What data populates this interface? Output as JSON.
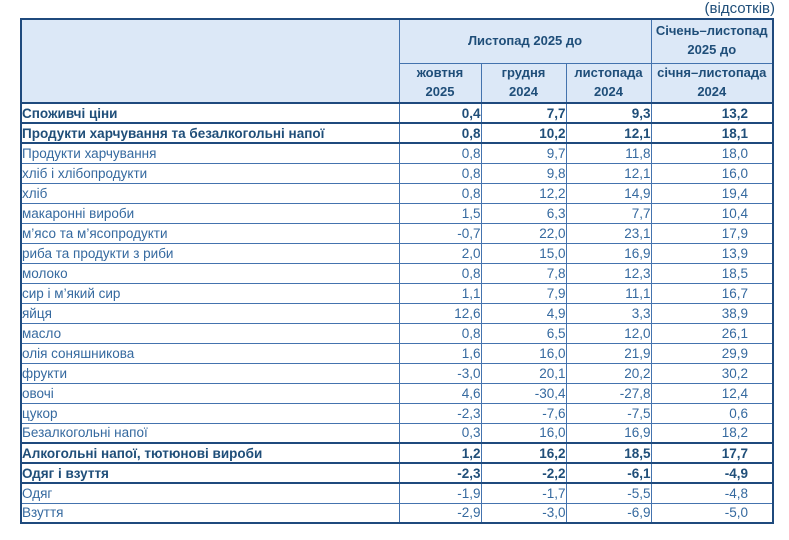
{
  "page": {
    "units_note": "(відсотків)"
  },
  "table": {
    "header": {
      "group_label": "Листопад 2025 до",
      "sub_cols": [
        "жовтня\n2025",
        "грудня\n2024",
        "листопада\n2024"
      ],
      "last_col_top": "Січень–листопад\n2025 до",
      "last_col_bottom": "січня–листопада\n2024"
    },
    "rows": [
      {
        "label": "Споживчі ціни",
        "indent": 0,
        "bold": true,
        "values": [
          "0,4",
          "7,7",
          "9,3",
          "13,2"
        ]
      },
      {
        "label": "Продукти харчування та безалкогольні напої",
        "indent": 1,
        "bold": true,
        "values": [
          "0,8",
          "10,2",
          "12,1",
          "18,1"
        ]
      },
      {
        "label": "Продукти харчування",
        "indent": 2,
        "bold": false,
        "values": [
          "0,8",
          "9,7",
          "11,8",
          "18,0"
        ]
      },
      {
        "label": "хліб і хлібопродукти",
        "indent": 3,
        "bold": false,
        "values": [
          "0,8",
          "9,8",
          "12,1",
          "16,0"
        ]
      },
      {
        "label": "хліб",
        "indent": 3,
        "bold": false,
        "values": [
          "0,8",
          "12,2",
          "14,9",
          "19,4"
        ]
      },
      {
        "label": "макаронні вироби",
        "indent": 3,
        "bold": false,
        "values": [
          "1,5",
          "6,3",
          "7,7",
          "10,4"
        ]
      },
      {
        "label": "м’ясо та м’ясопродукти",
        "indent": 3,
        "bold": false,
        "values": [
          "-0,7",
          "22,0",
          "23,1",
          "17,9"
        ]
      },
      {
        "label": "риба та продукти з риби",
        "indent": 3,
        "bold": false,
        "values": [
          "2,0",
          "15,0",
          "16,9",
          "13,9"
        ]
      },
      {
        "label": "молоко",
        "indent": 3,
        "bold": false,
        "values": [
          "0,8",
          "7,8",
          "12,3",
          "18,5"
        ]
      },
      {
        "label": "сир і м’який сир",
        "indent": 3,
        "bold": false,
        "values": [
          "1,1",
          "7,9",
          "11,1",
          "16,7"
        ]
      },
      {
        "label": "яйця",
        "indent": 3,
        "bold": false,
        "values": [
          "12,6",
          "4,9",
          "3,3",
          "38,9"
        ]
      },
      {
        "label": "масло",
        "indent": 3,
        "bold": false,
        "values": [
          "0,8",
          "6,5",
          "12,0",
          "26,1"
        ]
      },
      {
        "label": "олія соняшникова",
        "indent": 3,
        "bold": false,
        "values": [
          "1,6",
          "16,0",
          "21,9",
          "29,9"
        ]
      },
      {
        "label": "фрукти",
        "indent": 3,
        "bold": false,
        "values": [
          "-3,0",
          "20,1",
          "20,2",
          "30,2"
        ]
      },
      {
        "label": "овочі",
        "indent": 3,
        "bold": false,
        "values": [
          "4,6",
          "-30,4",
          "-27,8",
          "12,4"
        ]
      },
      {
        "label": "цукор",
        "indent": 3,
        "bold": false,
        "values": [
          "-2,3",
          "-7,6",
          "-7,5",
          "0,6"
        ]
      },
      {
        "label": "Безалкогольні напої",
        "indent": 2,
        "bold": false,
        "values": [
          "0,3",
          "16,0",
          "16,9",
          "18,2"
        ]
      },
      {
        "label": "Алкогольні напої, тютюнові вироби",
        "indent": 1,
        "bold": true,
        "values": [
          "1,2",
          "16,2",
          "18,5",
          "17,7"
        ]
      },
      {
        "label": "Одяг і взуття",
        "indent": 1,
        "bold": true,
        "values": [
          "-2,3",
          "-2,2",
          "-6,1",
          "-4,9"
        ]
      },
      {
        "label": "Одяг",
        "indent": 2,
        "bold": false,
        "values": [
          "-1,9",
          "-1,7",
          "-5,5",
          "-4,8"
        ]
      },
      {
        "label": "Взуття",
        "indent": 2,
        "bold": false,
        "values": [
          "-2,9",
          "-3,0",
          "-6,9",
          "-5,0"
        ]
      }
    ]
  },
  "colors": {
    "header_bg": "#dce8f7",
    "text_regular": "#35699f",
    "text_bold": "#1f4e79",
    "border_thin": "#4473ae",
    "border_thick": "#1f4a7d",
    "last_col_outline": "#3f3f3f"
  }
}
